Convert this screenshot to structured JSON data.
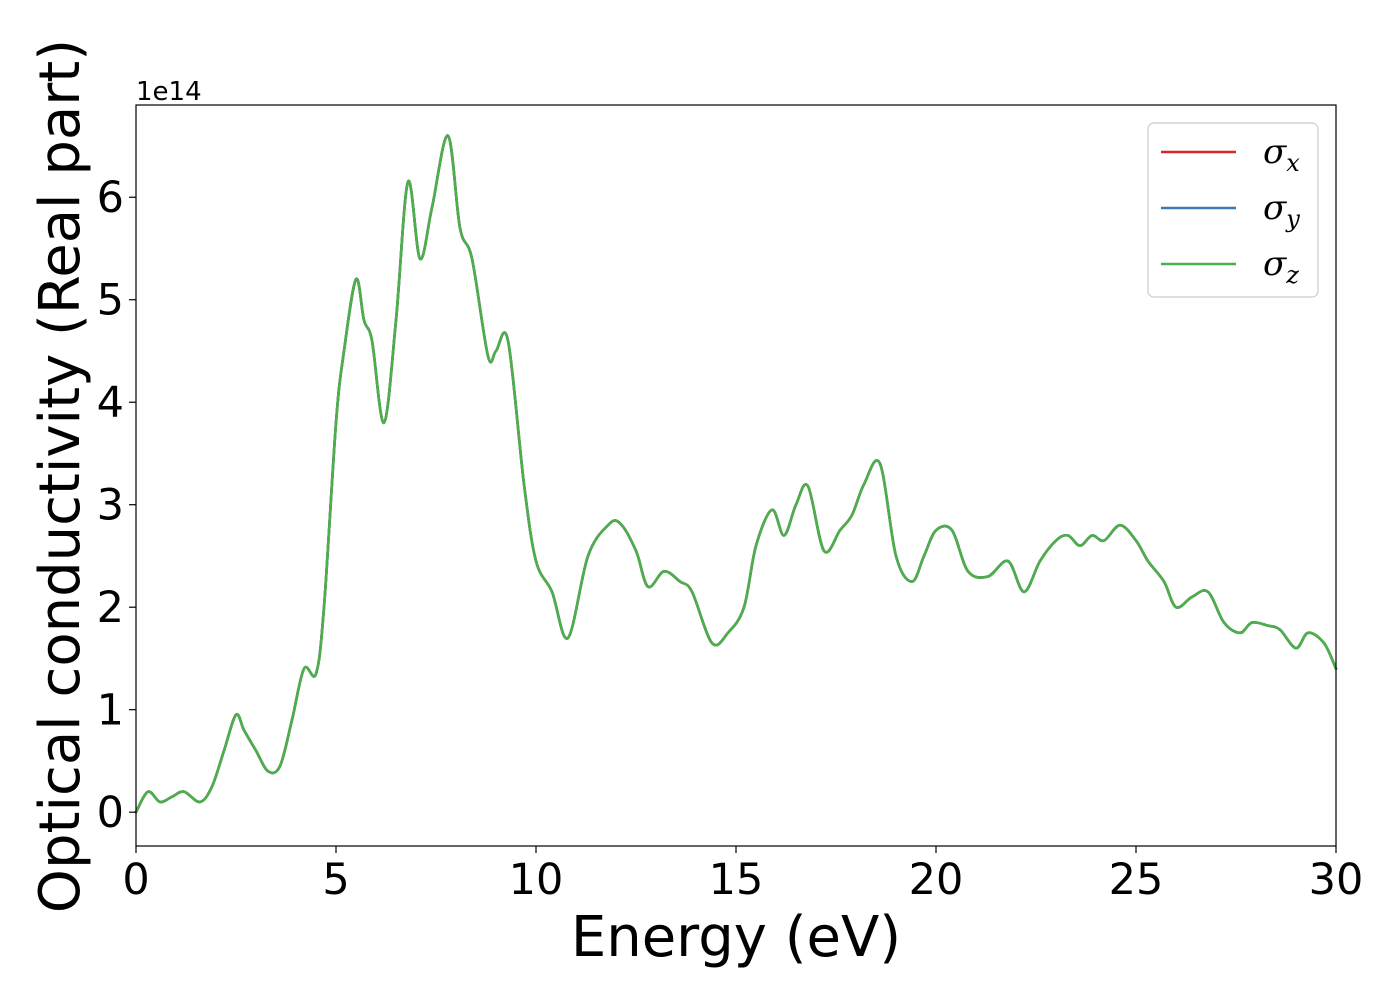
{
  "chart_data": {
    "type": "line",
    "xlabel": "Energy (eV)",
    "ylabel": "Optical conductivity (Real part)",
    "y_offset_label": "1e14",
    "xlim": [
      0,
      30
    ],
    "ylim": [
      -0.33,
      6.9
    ],
    "x_ticks": [
      0,
      5,
      10,
      15,
      20,
      25,
      30
    ],
    "x_tick_labels": [
      "0",
      "5",
      "10",
      "15",
      "20",
      "25",
      "30"
    ],
    "y_ticks": [
      0,
      1,
      2,
      3,
      4,
      5,
      6
    ],
    "y_tick_labels": [
      "0",
      "1",
      "2",
      "3",
      "4",
      "5",
      "6"
    ],
    "grid": false,
    "legend_position": "top-right",
    "series_colors": {
      "x": "#d62728",
      "y": "#3a7ab8",
      "z": "#4daf4a"
    },
    "series": [
      {
        "name": "σx",
        "symbol": "σ",
        "subscript": "x",
        "color": "#d62728",
        "x": [
          0,
          0.3,
          0.6,
          0.9,
          1.2,
          1.6,
          1.9,
          2.2,
          2.5,
          2.7,
          3.0,
          3.3,
          3.6,
          3.9,
          4.2,
          4.5,
          4.7,
          5.0,
          5.2,
          5.5,
          5.7,
          5.9,
          6.2,
          6.5,
          6.8,
          7.1,
          7.4,
          7.8,
          8.1,
          8.4,
          8.8,
          9.0,
          9.3,
          9.7,
          10.0,
          10.4,
          10.8,
          11.3,
          11.8,
          12.1,
          12.5,
          12.8,
          13.2,
          13.6,
          13.9,
          14.4,
          14.8,
          15.2,
          15.5,
          15.9,
          16.2,
          16.5,
          16.8,
          17.2,
          17.6,
          17.9,
          18.2,
          18.6,
          19.0,
          19.4,
          19.7,
          20.0,
          20.4,
          20.8,
          21.3,
          21.8,
          22.2,
          22.6,
          23.0,
          23.3,
          23.6,
          23.9,
          24.2,
          24.6,
          25.0,
          25.3,
          25.7,
          26.0,
          26.4,
          26.8,
          27.2,
          27.6,
          27.9,
          28.3,
          28.6,
          29.0,
          29.3,
          29.7,
          30.0
        ],
        "y": [
          0.0,
          0.2,
          0.1,
          0.15,
          0.2,
          0.1,
          0.25,
          0.6,
          0.95,
          0.8,
          0.6,
          0.4,
          0.45,
          0.9,
          1.4,
          1.35,
          2.0,
          3.8,
          4.5,
          5.2,
          4.8,
          4.6,
          3.8,
          4.8,
          6.15,
          5.4,
          5.9,
          6.6,
          5.7,
          5.4,
          4.45,
          4.5,
          4.6,
          3.2,
          2.45,
          2.15,
          1.7,
          2.5,
          2.8,
          2.82,
          2.55,
          2.2,
          2.35,
          2.25,
          2.15,
          1.65,
          1.75,
          2.0,
          2.6,
          2.95,
          2.7,
          3.0,
          3.18,
          2.55,
          2.75,
          2.9,
          3.2,
          3.4,
          2.5,
          2.25,
          2.5,
          2.75,
          2.75,
          2.35,
          2.3,
          2.45,
          2.15,
          2.45,
          2.65,
          2.7,
          2.6,
          2.7,
          2.65,
          2.8,
          2.65,
          2.45,
          2.25,
          2.0,
          2.1,
          2.15,
          1.85,
          1.75,
          1.85,
          1.82,
          1.78,
          1.6,
          1.75,
          1.65,
          1.4
        ]
      },
      {
        "name": "σy",
        "symbol": "σ",
        "subscript": "y",
        "color": "#3a7ab8",
        "x": [
          0,
          0.3,
          0.6,
          0.9,
          1.2,
          1.6,
          1.9,
          2.2,
          2.5,
          2.7,
          3.0,
          3.3,
          3.6,
          3.9,
          4.2,
          4.5,
          4.7,
          5.0,
          5.2,
          5.5,
          5.7,
          5.9,
          6.2,
          6.5,
          6.8,
          7.1,
          7.4,
          7.8,
          8.1,
          8.4,
          8.8,
          9.0,
          9.3,
          9.7,
          10.0,
          10.4,
          10.8,
          11.3,
          11.8,
          12.1,
          12.5,
          12.8,
          13.2,
          13.6,
          13.9,
          14.4,
          14.8,
          15.2,
          15.5,
          15.9,
          16.2,
          16.5,
          16.8,
          17.2,
          17.6,
          17.9,
          18.2,
          18.6,
          19.0,
          19.4,
          19.7,
          20.0,
          20.4,
          20.8,
          21.3,
          21.8,
          22.2,
          22.6,
          23.0,
          23.3,
          23.6,
          23.9,
          24.2,
          24.6,
          25.0,
          25.3,
          25.7,
          26.0,
          26.4,
          26.8,
          27.2,
          27.6,
          27.9,
          28.3,
          28.6,
          29.0,
          29.3,
          29.7,
          30.0
        ],
        "y": [
          0.0,
          0.2,
          0.1,
          0.15,
          0.2,
          0.1,
          0.25,
          0.6,
          0.95,
          0.8,
          0.6,
          0.4,
          0.45,
          0.9,
          1.4,
          1.35,
          2.0,
          3.8,
          4.5,
          5.2,
          4.8,
          4.6,
          3.8,
          4.8,
          6.15,
          5.4,
          5.9,
          6.6,
          5.7,
          5.4,
          4.45,
          4.5,
          4.6,
          3.2,
          2.45,
          2.15,
          1.7,
          2.5,
          2.8,
          2.82,
          2.55,
          2.2,
          2.35,
          2.25,
          2.15,
          1.65,
          1.75,
          2.0,
          2.6,
          2.95,
          2.7,
          3.0,
          3.18,
          2.55,
          2.75,
          2.9,
          3.2,
          3.4,
          2.5,
          2.25,
          2.5,
          2.75,
          2.75,
          2.35,
          2.3,
          2.45,
          2.15,
          2.45,
          2.65,
          2.7,
          2.6,
          2.7,
          2.65,
          2.8,
          2.65,
          2.45,
          2.25,
          2.0,
          2.1,
          2.15,
          1.85,
          1.75,
          1.85,
          1.82,
          1.78,
          1.6,
          1.75,
          1.65,
          1.4
        ]
      },
      {
        "name": "σz",
        "symbol": "σ",
        "subscript": "z",
        "color": "#4daf4a",
        "x": [
          0,
          0.3,
          0.6,
          0.9,
          1.2,
          1.6,
          1.9,
          2.2,
          2.5,
          2.7,
          3.0,
          3.3,
          3.6,
          3.9,
          4.2,
          4.5,
          4.7,
          5.0,
          5.2,
          5.5,
          5.7,
          5.9,
          6.2,
          6.5,
          6.8,
          7.1,
          7.4,
          7.8,
          8.1,
          8.4,
          8.8,
          9.0,
          9.3,
          9.7,
          10.0,
          10.4,
          10.8,
          11.3,
          11.8,
          12.1,
          12.5,
          12.8,
          13.2,
          13.6,
          13.9,
          14.4,
          14.8,
          15.2,
          15.5,
          15.9,
          16.2,
          16.5,
          16.8,
          17.2,
          17.6,
          17.9,
          18.2,
          18.6,
          19.0,
          19.4,
          19.7,
          20.0,
          20.4,
          20.8,
          21.3,
          21.8,
          22.2,
          22.6,
          23.0,
          23.3,
          23.6,
          23.9,
          24.2,
          24.6,
          25.0,
          25.3,
          25.7,
          26.0,
          26.4,
          26.8,
          27.2,
          27.6,
          27.9,
          28.3,
          28.6,
          29.0,
          29.3,
          29.7,
          30.0
        ],
        "y": [
          0.0,
          0.2,
          0.1,
          0.15,
          0.2,
          0.1,
          0.25,
          0.6,
          0.95,
          0.8,
          0.6,
          0.4,
          0.45,
          0.9,
          1.4,
          1.35,
          2.0,
          3.8,
          4.5,
          5.2,
          4.8,
          4.6,
          3.8,
          4.8,
          6.15,
          5.4,
          5.9,
          6.6,
          5.7,
          5.4,
          4.45,
          4.5,
          4.6,
          3.2,
          2.45,
          2.15,
          1.7,
          2.5,
          2.8,
          2.82,
          2.55,
          2.2,
          2.35,
          2.25,
          2.15,
          1.65,
          1.75,
          2.0,
          2.6,
          2.95,
          2.7,
          3.0,
          3.18,
          2.55,
          2.75,
          2.9,
          3.2,
          3.4,
          2.5,
          2.25,
          2.5,
          2.75,
          2.75,
          2.35,
          2.3,
          2.45,
          2.15,
          2.45,
          2.65,
          2.7,
          2.6,
          2.7,
          2.65,
          2.8,
          2.65,
          2.45,
          2.25,
          2.0,
          2.1,
          2.15,
          1.85,
          1.75,
          1.85,
          1.82,
          1.78,
          1.6,
          1.75,
          1.65,
          1.4
        ]
      }
    ]
  }
}
